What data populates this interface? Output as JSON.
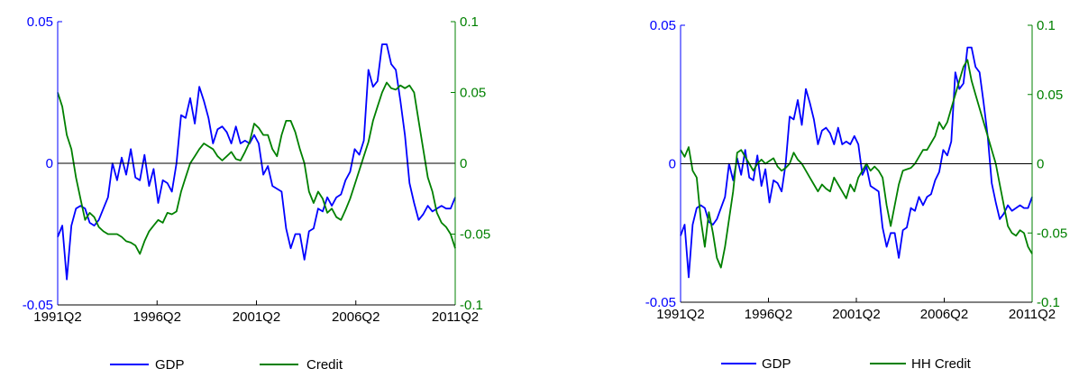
{
  "chart_data": [
    {
      "type": "line",
      "title": "",
      "xlabel": "",
      "x_ticks": [
        "1991Q2",
        "1996Q2",
        "2001Q2",
        "2006Q2",
        "2011Q2"
      ],
      "left_axis": {
        "ylim": [
          -0.05,
          0.05
        ],
        "ticks": [
          "-0.05",
          "0",
          "0.05"
        ],
        "color": "#0000ff"
      },
      "right_axis": {
        "ylim": [
          -0.1,
          0.1
        ],
        "ticks": [
          "-0.1",
          "-0.05",
          "0",
          "0.05",
          "0.1"
        ],
        "color": "#008000"
      },
      "zero_line": true,
      "grid": false,
      "legend": {
        "placement": "bottom",
        "items": [
          "GDP",
          "Credit"
        ]
      },
      "series": [
        {
          "name": "GDP",
          "axis": "left",
          "color": "#0000ff",
          "values": [
            -0.026,
            -0.022,
            -0.041,
            -0.022,
            -0.016,
            -0.015,
            -0.016,
            -0.021,
            -0.022,
            -0.02,
            -0.016,
            -0.012,
            0.0,
            -0.006,
            0.002,
            -0.004,
            0.005,
            -0.005,
            -0.006,
            0.003,
            -0.008,
            -0.002,
            -0.014,
            -0.006,
            -0.007,
            -0.01,
            0.0,
            0.017,
            0.016,
            0.023,
            0.014,
            0.027,
            0.022,
            0.016,
            0.007,
            0.012,
            0.013,
            0.011,
            0.007,
            0.013,
            0.007,
            0.008,
            0.007,
            0.01,
            0.007,
            -0.004,
            -0.001,
            -0.008,
            -0.009,
            -0.01,
            -0.023,
            -0.03,
            -0.025,
            -0.025,
            -0.034,
            -0.024,
            -0.023,
            -0.016,
            -0.017,
            -0.012,
            -0.015,
            -0.012,
            -0.011,
            -0.006,
            -0.003,
            0.005,
            0.003,
            0.008,
            0.033,
            0.027,
            0.029,
            0.042,
            0.042,
            0.035,
            0.033,
            0.022,
            0.01,
            -0.007,
            -0.014,
            -0.02,
            -0.018,
            -0.015,
            -0.017,
            -0.016,
            -0.015,
            -0.016,
            -0.016,
            -0.012
          ]
        },
        {
          "name": "Credit",
          "axis": "right",
          "color": "#008000",
          "values": [
            0.05,
            0.04,
            0.02,
            0.01,
            -0.01,
            -0.025,
            -0.04,
            -0.035,
            -0.038,
            -0.045,
            -0.048,
            -0.05,
            -0.05,
            -0.05,
            -0.052,
            -0.055,
            -0.056,
            -0.058,
            -0.064,
            -0.055,
            -0.048,
            -0.044,
            -0.04,
            -0.042,
            -0.035,
            -0.036,
            -0.034,
            -0.02,
            -0.01,
            0.0,
            0.005,
            0.01,
            0.014,
            0.012,
            0.01,
            0.005,
            0.002,
            0.005,
            0.008,
            0.003,
            0.002,
            0.008,
            0.015,
            0.028,
            0.025,
            0.02,
            0.02,
            0.01,
            0.005,
            0.02,
            0.03,
            0.03,
            0.022,
            0.01,
            0.0,
            -0.02,
            -0.028,
            -0.02,
            -0.025,
            -0.035,
            -0.032,
            -0.038,
            -0.04,
            -0.033,
            -0.025,
            -0.015,
            -0.005,
            0.005,
            0.015,
            0.03,
            0.04,
            0.05,
            0.057,
            0.053,
            0.052,
            0.055,
            0.053,
            0.055,
            0.05,
            0.03,
            0.01,
            -0.01,
            -0.02,
            -0.035,
            -0.042,
            -0.045,
            -0.05,
            -0.06
          ]
        }
      ]
    },
    {
      "type": "line",
      "title": "",
      "xlabel": "",
      "x_ticks": [
        "1991Q2",
        "1996Q2",
        "2001Q2",
        "2006Q2",
        "2011Q2"
      ],
      "left_axis": {
        "ylim": [
          -0.05,
          0.05
        ],
        "ticks": [
          "-0.05",
          "0",
          "0.05"
        ],
        "color": "#0000ff"
      },
      "right_axis": {
        "ylim": [
          -0.1,
          0.1
        ],
        "ticks": [
          "-0.1",
          "-0.05",
          "0",
          "0.05",
          "0.1"
        ],
        "color": "#008000"
      },
      "zero_line": true,
      "grid": false,
      "legend": {
        "placement": "bottom",
        "items": [
          "GDP",
          "HH Credit"
        ]
      },
      "series": [
        {
          "name": "GDP",
          "axis": "left",
          "color": "#0000ff",
          "values": [
            -0.026,
            -0.022,
            -0.041,
            -0.022,
            -0.016,
            -0.015,
            -0.016,
            -0.021,
            -0.022,
            -0.02,
            -0.016,
            -0.012,
            0.0,
            -0.006,
            0.002,
            -0.004,
            0.005,
            -0.005,
            -0.006,
            0.003,
            -0.008,
            -0.002,
            -0.014,
            -0.006,
            -0.007,
            -0.01,
            0.0,
            0.017,
            0.016,
            0.023,
            0.014,
            0.027,
            0.022,
            0.016,
            0.007,
            0.012,
            0.013,
            0.011,
            0.007,
            0.013,
            0.007,
            0.008,
            0.007,
            0.01,
            0.007,
            -0.004,
            -0.001,
            -0.008,
            -0.009,
            -0.01,
            -0.023,
            -0.03,
            -0.025,
            -0.025,
            -0.034,
            -0.024,
            -0.023,
            -0.016,
            -0.017,
            -0.012,
            -0.015,
            -0.012,
            -0.011,
            -0.006,
            -0.003,
            0.005,
            0.003,
            0.008,
            0.033,
            0.027,
            0.029,
            0.042,
            0.042,
            0.035,
            0.033,
            0.022,
            0.01,
            -0.007,
            -0.014,
            -0.02,
            -0.018,
            -0.015,
            -0.017,
            -0.016,
            -0.015,
            -0.016,
            -0.016,
            -0.012
          ]
        },
        {
          "name": "HH Credit",
          "axis": "right",
          "color": "#008000",
          "values": [
            0.01,
            0.005,
            0.012,
            -0.005,
            -0.01,
            -0.04,
            -0.06,
            -0.035,
            -0.05,
            -0.068,
            -0.075,
            -0.06,
            -0.04,
            -0.02,
            0.008,
            0.01,
            0.005,
            0.0,
            -0.005,
            0.0,
            0.003,
            0.0,
            0.002,
            0.004,
            -0.002,
            -0.005,
            -0.003,
            0.0,
            0.008,
            0.003,
            0.0,
            -0.005,
            -0.01,
            -0.015,
            -0.02,
            -0.015,
            -0.018,
            -0.02,
            -0.01,
            -0.015,
            -0.02,
            -0.025,
            -0.015,
            -0.02,
            -0.01,
            -0.005,
            0.0,
            -0.005,
            -0.002,
            -0.005,
            -0.01,
            -0.03,
            -0.045,
            -0.03,
            -0.015,
            -0.005,
            -0.004,
            -0.003,
            0.0,
            0.005,
            0.01,
            0.01,
            0.015,
            0.02,
            0.03,
            0.025,
            0.03,
            0.04,
            0.05,
            0.06,
            0.07,
            0.075,
            0.06,
            0.05,
            0.04,
            0.03,
            0.02,
            0.01,
            0.0,
            -0.015,
            -0.03,
            -0.045,
            -0.05,
            -0.052,
            -0.048,
            -0.05,
            -0.06,
            -0.065
          ]
        }
      ]
    }
  ]
}
